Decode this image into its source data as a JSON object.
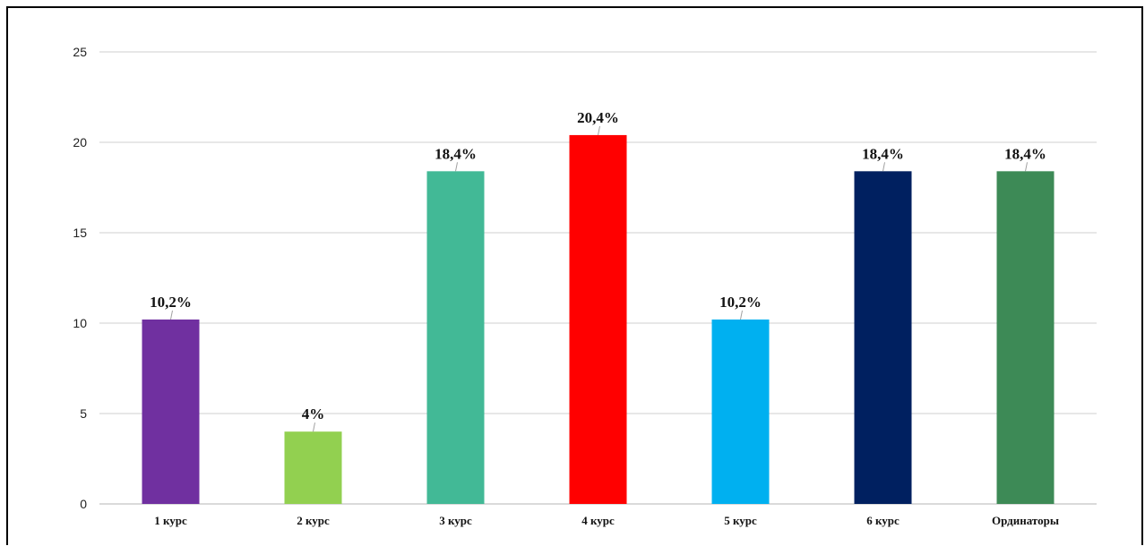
{
  "chart_data": {
    "type": "bar",
    "categories": [
      "1 курс",
      "2 курс",
      "3 курс",
      "4 курс",
      "5 курс",
      "6 курс",
      "Ординаторы"
    ],
    "values": [
      10.2,
      4,
      18.4,
      20.4,
      10.2,
      18.4,
      18.4
    ],
    "data_labels": [
      "10,2%",
      "4%",
      "18,4%",
      "20,4%",
      "10,2%",
      "18,4%",
      "18,4%"
    ],
    "colors": [
      "#7030a0",
      "#92d050",
      "#42b996",
      "#ff0000",
      "#00b0f0",
      "#002060",
      "#3d8a56"
    ],
    "yticks": [
      "0",
      "5",
      "10",
      "15",
      "20",
      "25"
    ],
    "ylim": [
      0,
      25
    ],
    "grid": true,
    "legend": "none",
    "title": "",
    "xlabel": "",
    "ylabel": ""
  }
}
